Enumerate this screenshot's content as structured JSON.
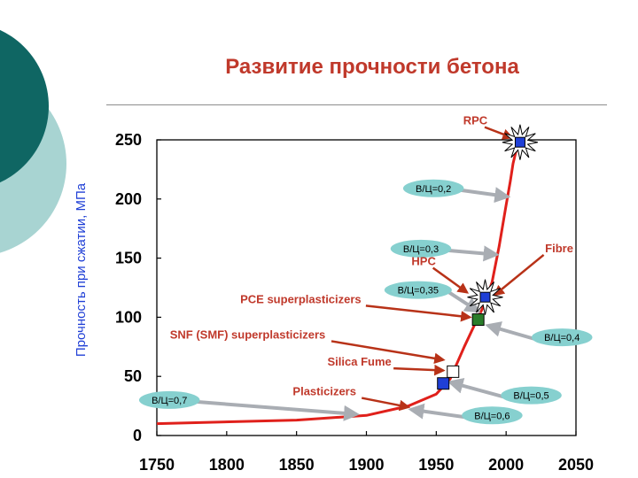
{
  "title": "Развитие прочности бетона",
  "colors": {
    "title": "#c0392b",
    "curve": "#e0201b",
    "arrow_red": "#b83218",
    "arrow_gray": "#a9adb3",
    "bubble": "#86d0cf",
    "marker_blue": "#1f3fd6",
    "marker_green": "#2a7d2a",
    "circle_dark": "#0f6663",
    "circle_light": "#a8d4d2"
  },
  "chart_data": {
    "type": "line",
    "title": "",
    "xlabel": "",
    "ylabel": "Прочность при сжатии, МПа",
    "xlim": [
      1750,
      2050
    ],
    "ylim": [
      0,
      250
    ],
    "x_ticks": [
      "1750",
      "1800",
      "1850",
      "1900",
      "1950",
      "2000",
      "2050"
    ],
    "y_ticks": [
      "0",
      "50",
      "100",
      "150",
      "200",
      "250"
    ],
    "grid": false,
    "series": [
      {
        "name": "",
        "x": [
          1750,
          1850,
          1900,
          1930,
          1950,
          1960,
          1970,
          1980,
          1985,
          1990,
          1995,
          2000,
          2003,
          2005,
          2007,
          2010
        ],
        "y": [
          10,
          13,
          17,
          25,
          35,
          48,
          75,
          100,
          112,
          130,
          160,
          195,
          215,
          230,
          240,
          248
        ]
      }
    ],
    "markers": [
      {
        "x": 2010,
        "y": 248,
        "shape": "square",
        "color": "blue",
        "burst": true
      },
      {
        "x": 1985,
        "y": 117,
        "shape": "square",
        "color": "blue",
        "burst": true
      },
      {
        "x": 1980,
        "y": 98,
        "shape": "square",
        "color": "green",
        "burst": false
      },
      {
        "x": 1962,
        "y": 54,
        "shape": "square",
        "color": "white",
        "burst": false
      },
      {
        "x": 1955,
        "y": 44,
        "shape": "square",
        "color": "blue",
        "burst": false
      }
    ],
    "annotations": [
      {
        "text": "RPC",
        "style": "text",
        "tx": 1978,
        "ty": 263,
        "ax": 2004,
        "ay": 252,
        "arrow": "red"
      },
      {
        "text": "В/Ц=0,2",
        "style": "bubble",
        "tx": 1948,
        "ty": 209,
        "ax": 2001,
        "ay": 202,
        "arrow": "gray"
      },
      {
        "text": "В/Ц=0,3",
        "style": "bubble",
        "tx": 1939,
        "ty": 158,
        "ax": 1993,
        "ay": 153,
        "arrow": "gray"
      },
      {
        "text": "Fibre",
        "style": "text",
        "tx": 2038,
        "ty": 155,
        "ax": 1992,
        "ay": 119,
        "arrow": "red"
      },
      {
        "text": "HPC",
        "style": "text",
        "tx": 1941,
        "ty": 144,
        "ax": 1972,
        "ay": 121,
        "arrow": "red"
      },
      {
        "text": "В/Ц=0,35",
        "style": "bubble",
        "tx": 1937,
        "ty": 123,
        "ax": 1980,
        "ay": 105,
        "arrow": "gray"
      },
      {
        "text": "PCE superplasticizers",
        "style": "text",
        "tx": 1853,
        "ty": 112,
        "ax": 1974,
        "ay": 100,
        "arrow": "red"
      },
      {
        "text": "SNF (SMF) superplasticizers",
        "style": "text",
        "tx": 1815,
        "ty": 82,
        "ax": 1955,
        "ay": 64,
        "arrow": "red"
      },
      {
        "text": "В/Ц=0,4",
        "style": "bubble",
        "tx": 2040,
        "ty": 83,
        "ax": 1987,
        "ay": 93,
        "arrow": "gray"
      },
      {
        "text": "Silica Fume",
        "style": "text",
        "tx": 1895,
        "ty": 59,
        "ax": 1955,
        "ay": 55,
        "arrow": "red"
      },
      {
        "text": "Plasticizers",
        "style": "text",
        "tx": 1870,
        "ty": 34,
        "ax": 1930,
        "ay": 24,
        "arrow": "red"
      },
      {
        "text": "В/Ц=0,5",
        "style": "bubble",
        "tx": 2018,
        "ty": 34,
        "ax": 1960,
        "ay": 45,
        "arrow": "gray"
      },
      {
        "text": "В/Ц=0,7",
        "style": "bubble",
        "tx": 1759,
        "ty": 30,
        "ax": 1893,
        "ay": 18,
        "arrow": "gray"
      },
      {
        "text": "В/Ц=0,6",
        "style": "bubble",
        "tx": 1990,
        "ty": 17,
        "ax": 1932,
        "ay": 22,
        "arrow": "gray"
      }
    ]
  }
}
